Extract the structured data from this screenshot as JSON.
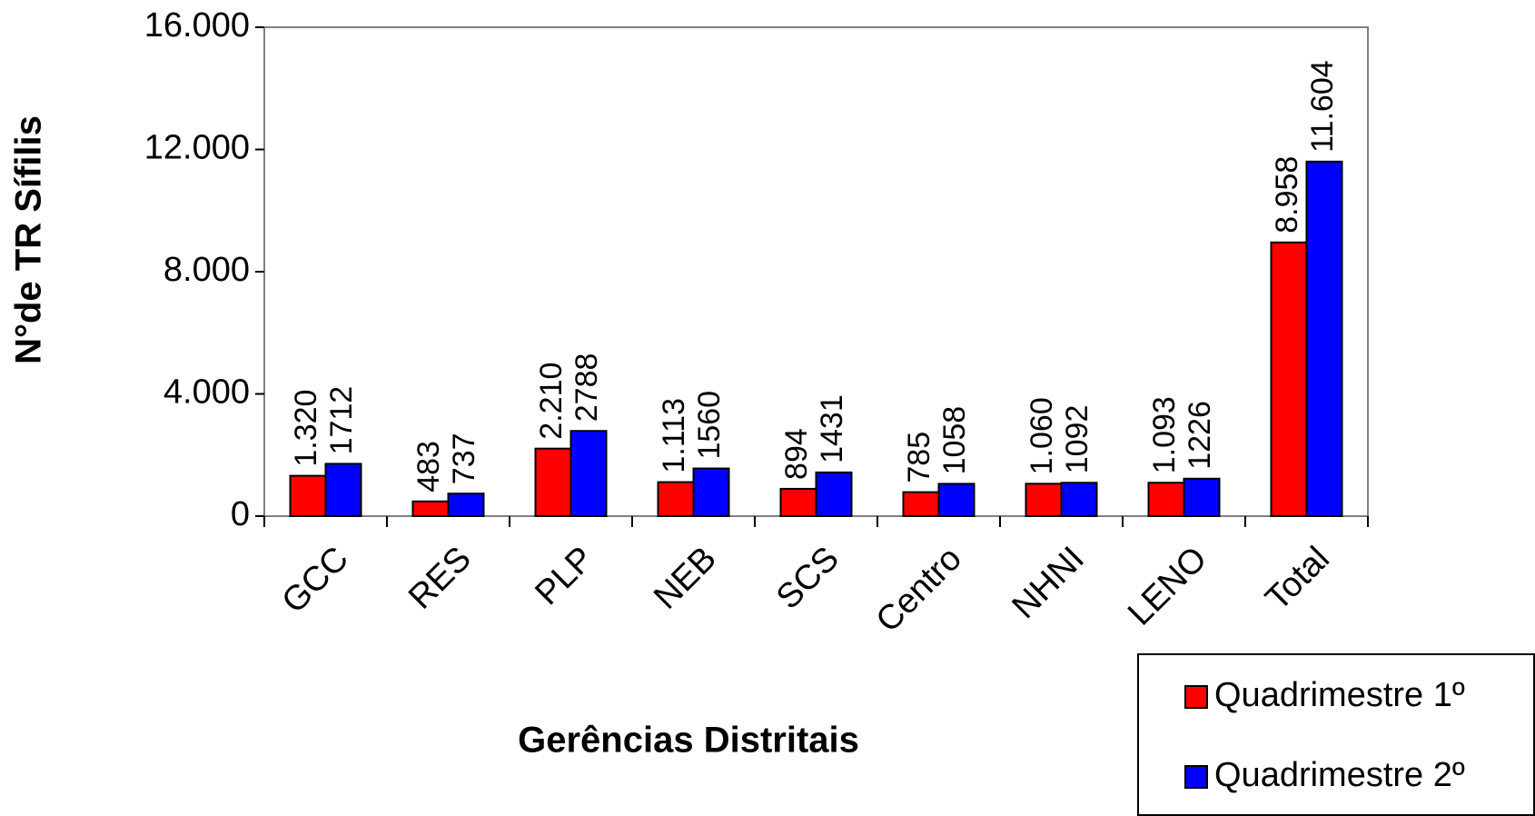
{
  "chart_data": {
    "type": "bar",
    "x_label": "Gerências Distritais",
    "y_label": "N°de TR Sífilis",
    "categories": [
      "GCC",
      "RES",
      "PLP",
      "NEB",
      "SCS",
      "Centro",
      "NHNI",
      "LENO",
      "Total"
    ],
    "series": [
      {
        "name": "Quadrimestre 1º",
        "color": "#ff0000",
        "values": [
          1320,
          483,
          2210,
          1113,
          894,
          785,
          1060,
          1093,
          8958
        ],
        "value_labels": [
          "1.320",
          "483",
          "2.210",
          "1.113",
          "894",
          "785",
          "1.060",
          "1.093",
          "8.958"
        ]
      },
      {
        "name": "Quadrimestre 2º",
        "color": "#0000ff",
        "values": [
          1712,
          737,
          2788,
          1560,
          1431,
          1058,
          1092,
          1226,
          11604
        ],
        "value_labels": [
          "1712",
          "737",
          "2788",
          "1560",
          "1431",
          "1058",
          "1092",
          "1226",
          "11.604"
        ]
      }
    ],
    "ylim": [
      0,
      16000
    ],
    "yticks": [
      0,
      {
        "value": 4000,
        "label": "4.000"
      },
      {
        "value": 8000,
        "label": "8.000"
      },
      {
        "value": 12000,
        "label": "12.000"
      },
      {
        "value": 16000,
        "label": "16.000"
      }
    ],
    "legend": "bottom-right"
  }
}
